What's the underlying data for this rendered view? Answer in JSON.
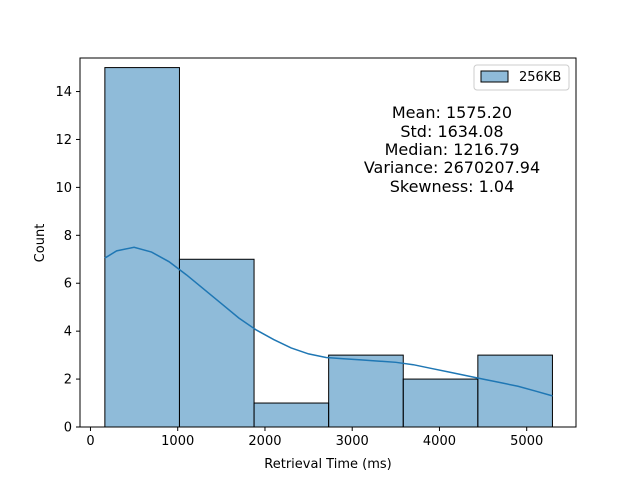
{
  "chart_data": {
    "type": "bar",
    "subtype": "histogram",
    "bins": [
      {
        "start": 165,
        "end": 1020,
        "count": 15
      },
      {
        "start": 1020,
        "end": 1875,
        "count": 7
      },
      {
        "start": 1875,
        "end": 2730,
        "count": 1
      },
      {
        "start": 2730,
        "end": 3585,
        "count": 3
      },
      {
        "start": 3585,
        "end": 4440,
        "count": 2
      },
      {
        "start": 4440,
        "end": 5295,
        "count": 3
      }
    ],
    "kde": {
      "x": [
        165,
        300,
        500,
        700,
        900,
        1100,
        1300,
        1500,
        1700,
        1900,
        2100,
        2300,
        2500,
        2700,
        2900,
        3100,
        3300,
        3500,
        3700,
        3900,
        4100,
        4300,
        4500,
        4700,
        4900,
        5100,
        5295
      ],
      "y": [
        7.05,
        7.35,
        7.5,
        7.3,
        6.9,
        6.35,
        5.75,
        5.15,
        4.55,
        4.05,
        3.65,
        3.3,
        3.05,
        2.9,
        2.85,
        2.8,
        2.75,
        2.7,
        2.6,
        2.45,
        2.3,
        2.15,
        2.0,
        1.85,
        1.7,
        1.5,
        1.3
      ]
    },
    "xlabel": "Retrieval Time (ms)",
    "ylabel": "Count",
    "xlim": [
      -120,
      5565
    ],
    "ylim": [
      0,
      15.4
    ],
    "xticks": [
      0,
      1000,
      2000,
      3000,
      4000,
      5000
    ],
    "yticks": [
      0,
      2,
      4,
      6,
      8,
      10,
      12,
      14
    ],
    "grid": false,
    "legend": {
      "position": "top-right",
      "entries": [
        "256KB"
      ]
    },
    "series_color": "#1f77b4",
    "bar_fill": "rgba(31,119,180,0.5)",
    "annotation_lines": [
      "Mean: 1575.20",
      "Std: 1634.08",
      "Median: 1216.79",
      "Variance: 2670207.94",
      "Skewness: 1.04"
    ]
  }
}
